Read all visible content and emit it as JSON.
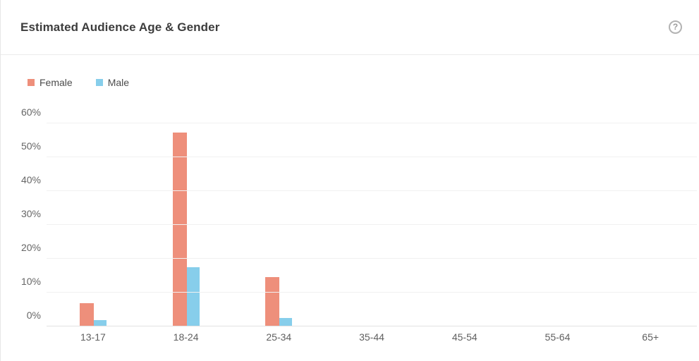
{
  "header": {
    "title": "Estimated Audience Age & Gender",
    "help_glyph": "?"
  },
  "colors": {
    "female": "#ee8f7b",
    "male": "#87ceeb",
    "gridline": "#f1f1f1",
    "axis_line": "#e2e2e2",
    "title_text": "#3d3d3d",
    "tick_text": "#666666"
  },
  "chart_data": {
    "type": "bar",
    "title": "Estimated Audience Age & Gender",
    "categories": [
      "13-17",
      "18-24",
      "25-34",
      "35-44",
      "45-54",
      "55-64",
      "65+"
    ],
    "series": [
      {
        "name": "Female",
        "color": "#ee8f7b",
        "values": [
          6.9,
          57.3,
          14.5,
          0,
          0,
          0,
          0
        ]
      },
      {
        "name": "Male",
        "color": "#87ceeb",
        "values": [
          1.9,
          17.5,
          2.5,
          0,
          0,
          0,
          0
        ]
      }
    ],
    "xlabel": "",
    "ylabel": "",
    "ylim": [
      0,
      60
    ],
    "yticks": [
      {
        "value": 0,
        "label": "0%"
      },
      {
        "value": 10,
        "label": "10%"
      },
      {
        "value": 20,
        "label": "20%"
      },
      {
        "value": 30,
        "label": "30%"
      },
      {
        "value": 40,
        "label": "40%"
      },
      {
        "value": 50,
        "label": "50%"
      },
      {
        "value": 60,
        "label": "60%"
      }
    ],
    "grid": true,
    "legend_position": "top-left"
  }
}
